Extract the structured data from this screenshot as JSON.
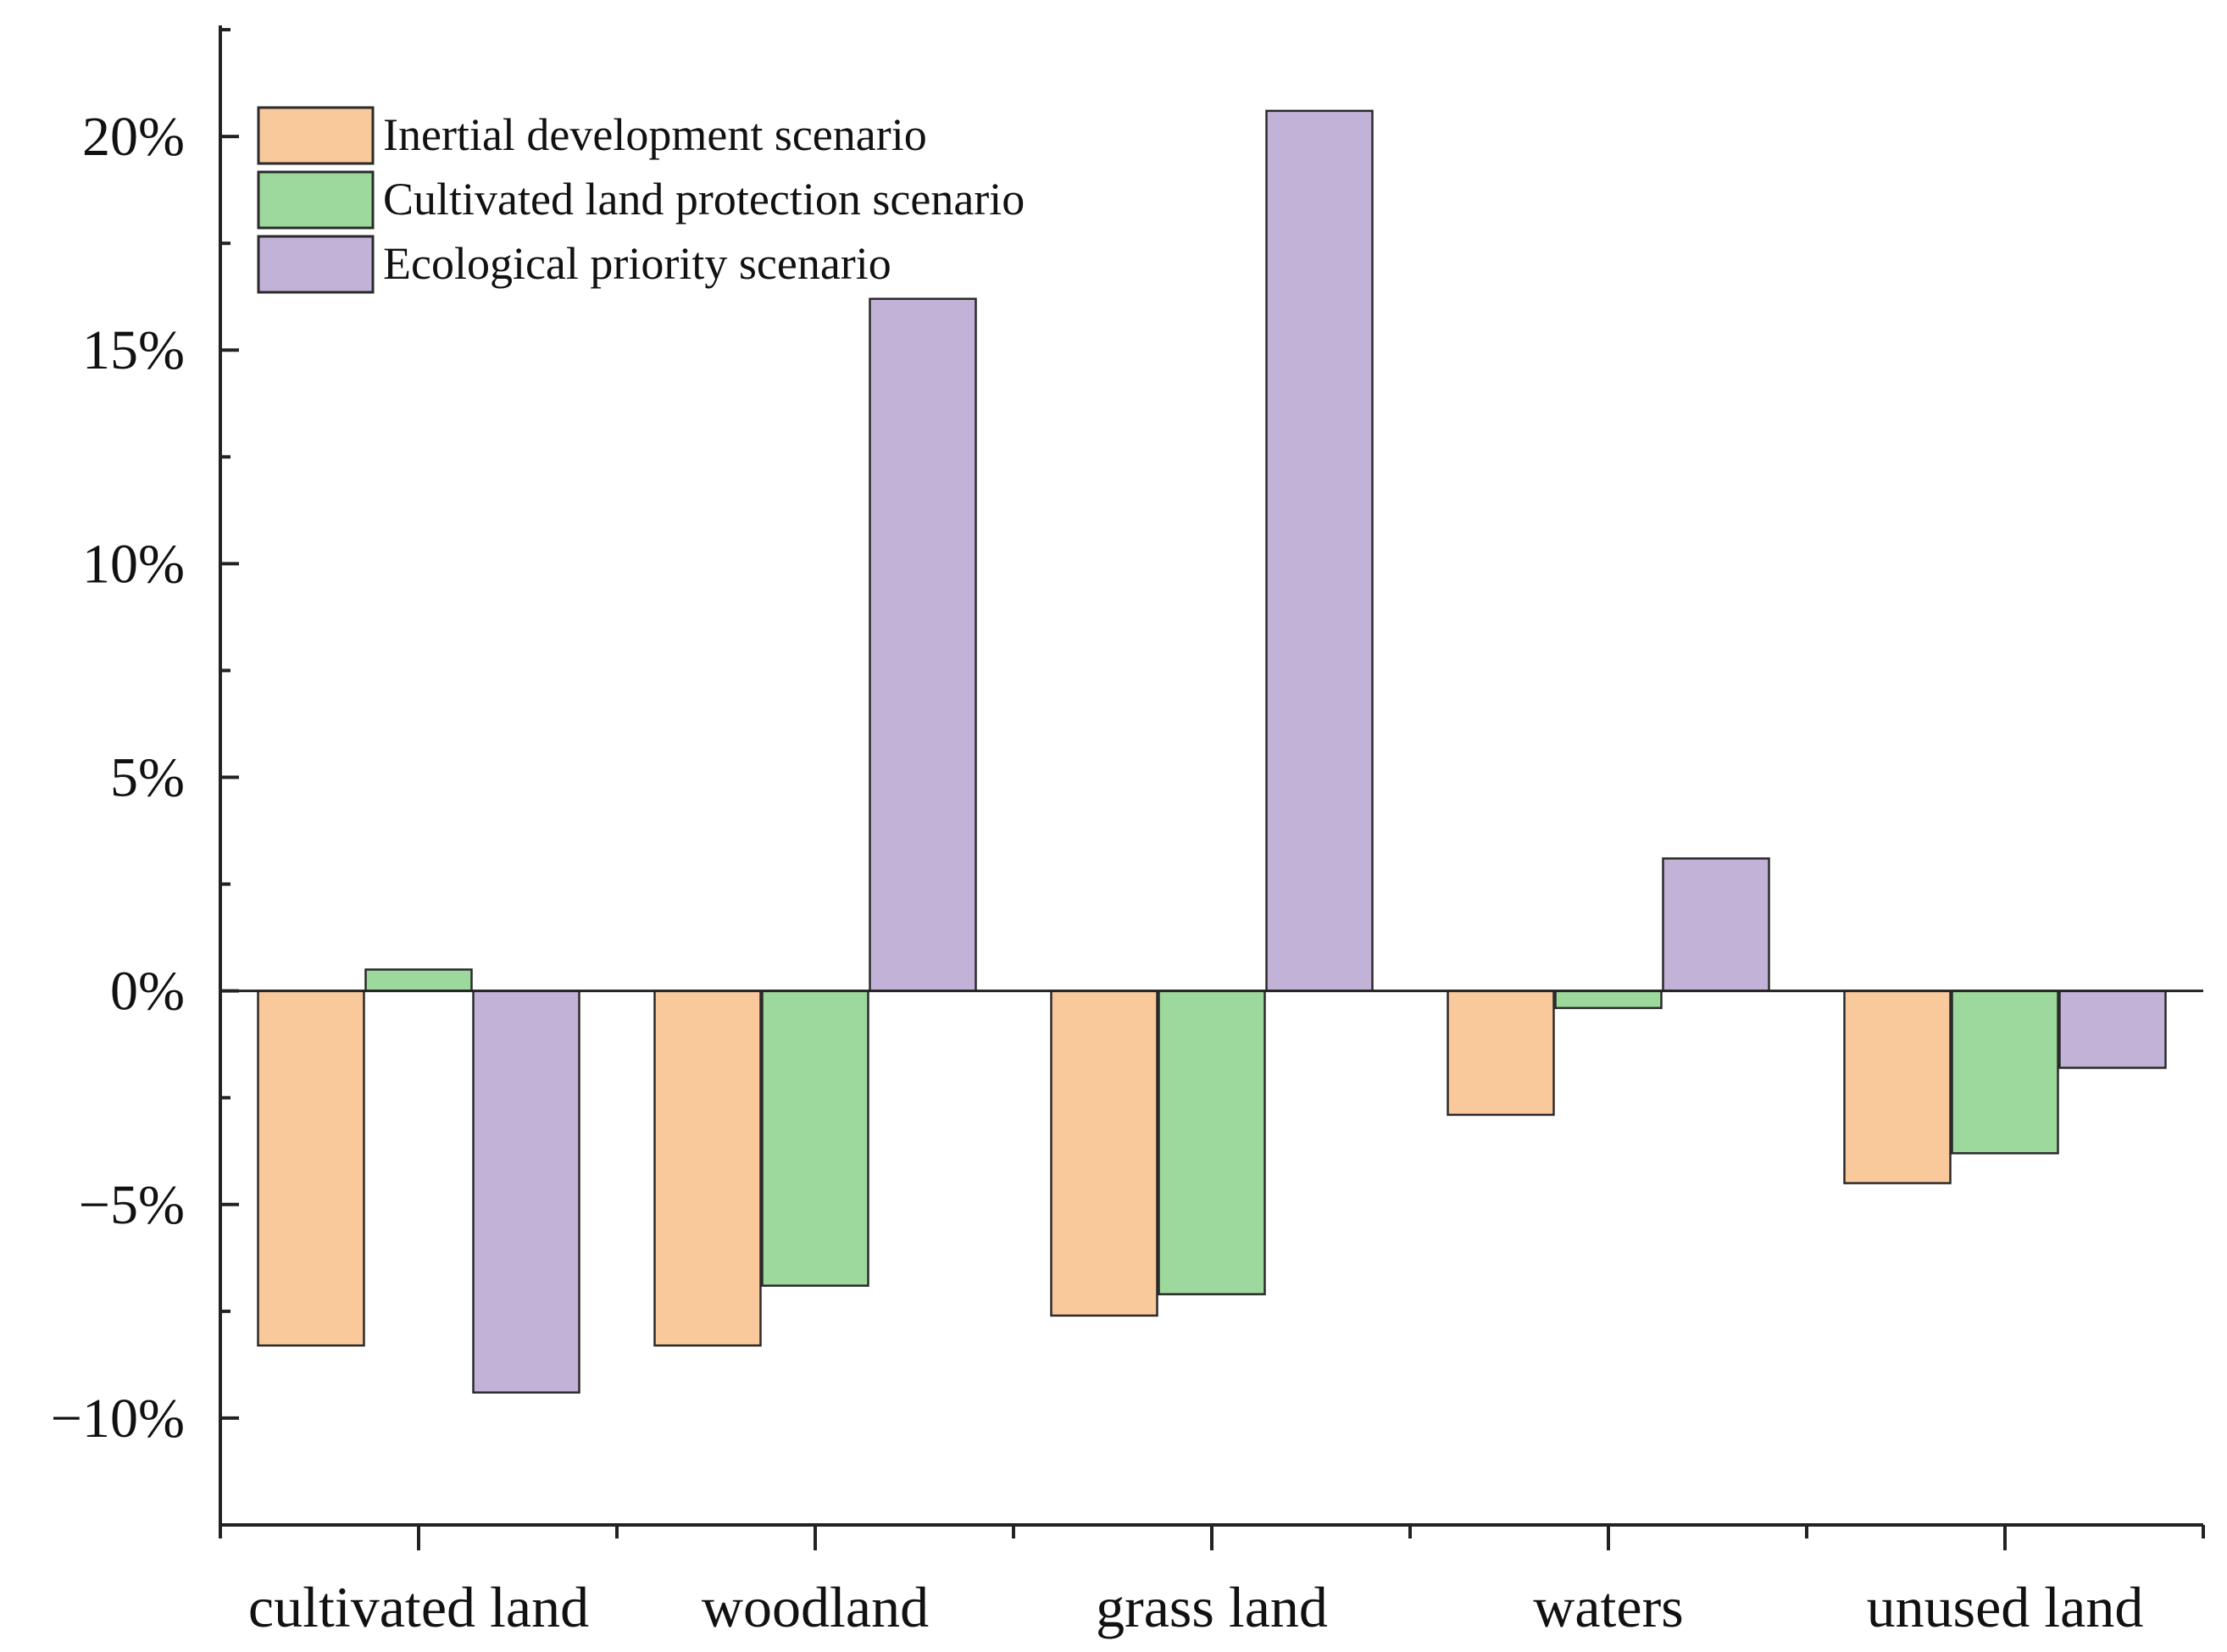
{
  "chart_data": {
    "type": "bar",
    "title": "",
    "xlabel": "",
    "ylabel": "",
    "categories": [
      "cultivated land",
      "woodland",
      "grass land",
      "waters",
      "unused land"
    ],
    "series": [
      {
        "name": "Inertial development scenario",
        "color": "#f9c89b",
        "values": [
          -8.3,
          -8.3,
          -7.6,
          -2.9,
          -4.5
        ]
      },
      {
        "name": "Cultivated land protection scenario",
        "color": "#9dd99c",
        "values": [
          0.5,
          -6.9,
          -7.1,
          -0.4,
          -3.8
        ]
      },
      {
        "name": "Ecological priority scenario",
        "color": "#c2b2d8",
        "values": [
          -9.4,
          16.2,
          20.6,
          3.1,
          -1.8
        ]
      }
    ],
    "ylim": [
      -12.5,
      22.6
    ],
    "yticks": [
      -10,
      -5,
      0,
      5,
      10,
      15,
      20
    ],
    "ytick_labels": [
      "−10%",
      "−5%",
      "0%",
      "5%",
      "10%",
      "15%",
      "20%"
    ],
    "legend_position": "top-left",
    "grid": false
  }
}
